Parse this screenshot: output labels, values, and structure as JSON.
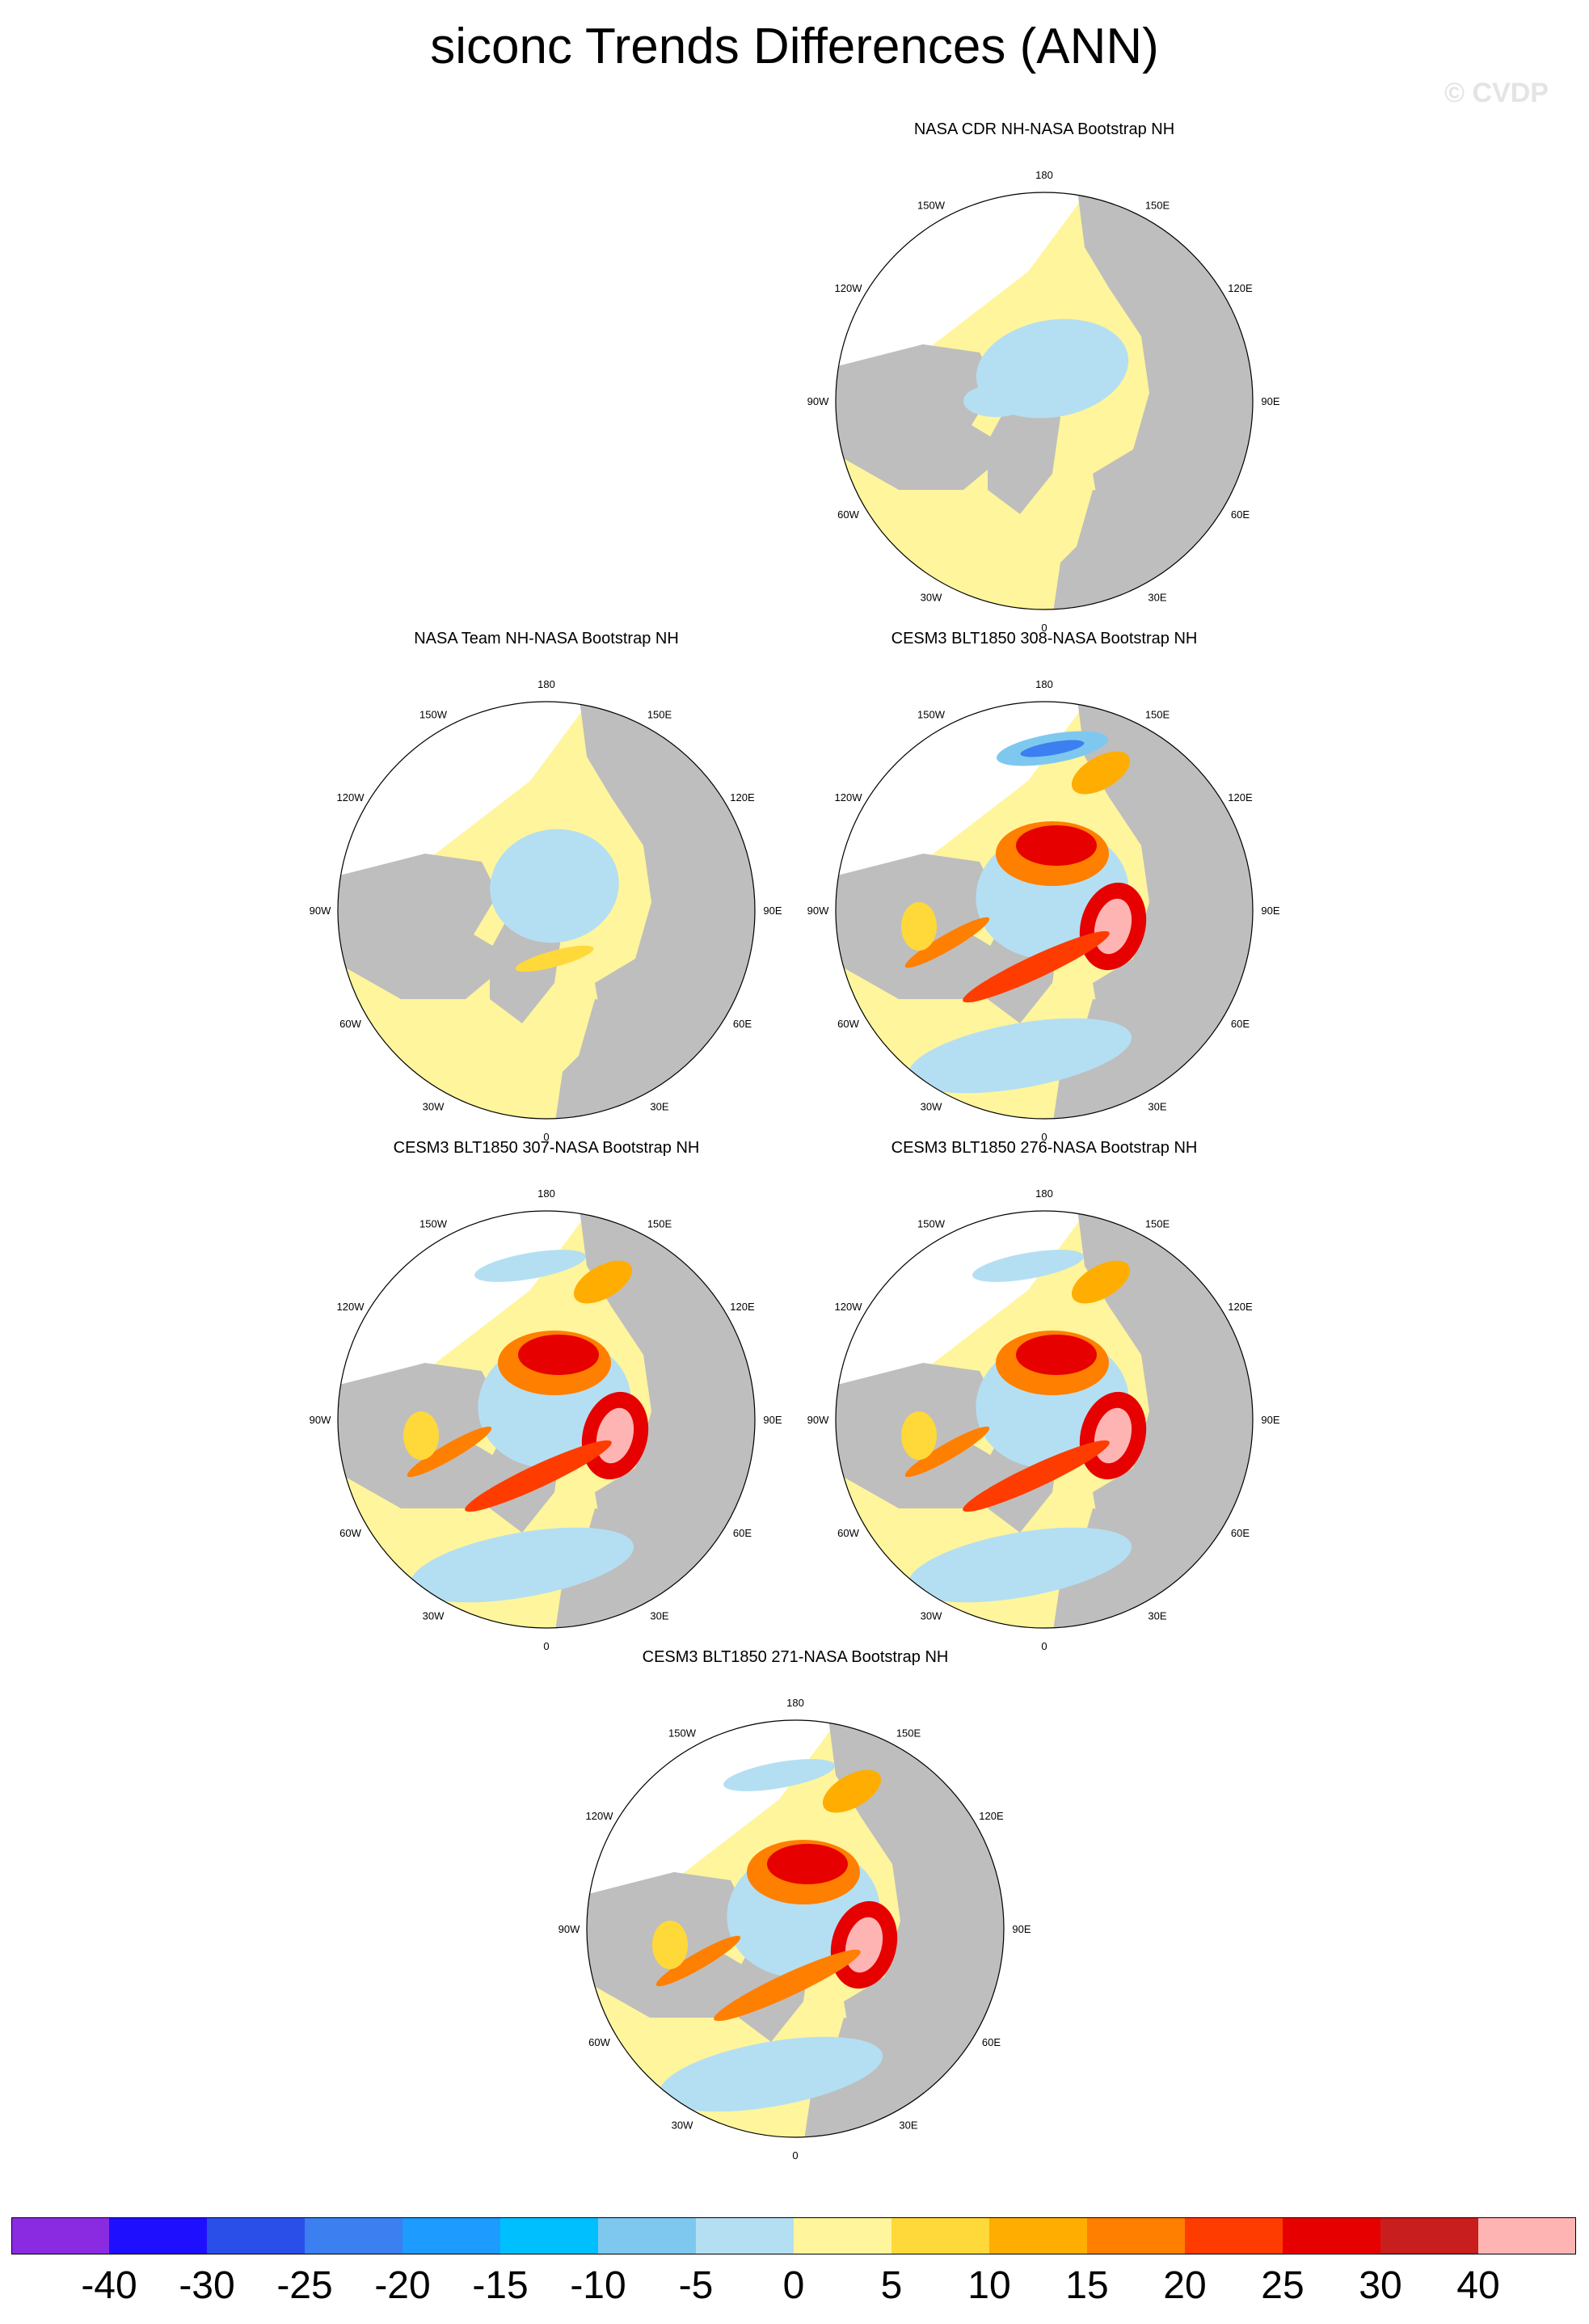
{
  "title": "siconc Trends Differences (ANN)",
  "watermark": "© CVDP",
  "panels": [
    {
      "id": "p1",
      "title": "NASA CDR NH-NASA Bootstrap NH",
      "style": "cdr"
    },
    {
      "id": "p2",
      "title": "NASA Team NH-NASA Bootstrap NH",
      "style": "team"
    },
    {
      "id": "p3",
      "title": "CESM3 BLT1850 308-NASA Bootstrap NH",
      "style": "model308"
    },
    {
      "id": "p4",
      "title": "CESM3 BLT1850 307-NASA Bootstrap NH",
      "style": "model307"
    },
    {
      "id": "p5",
      "title": "CESM3 BLT1850 276-NASA Bootstrap NH",
      "style": "model276"
    },
    {
      "id": "p6",
      "title": "CESM3 BLT1850 271-NASA Bootstrap NH",
      "style": "model271"
    }
  ],
  "longitude_labels": {
    "top": "180",
    "top_right": "150E",
    "right_upper": "120E",
    "right": "90E",
    "right_lower": "60E",
    "bottom_right": "30E",
    "bottom": "0",
    "bottom_left": "30W",
    "left_lower": "60W",
    "left": "90W",
    "left_upper": "120W",
    "top_left": "150W"
  },
  "colorbar": {
    "colors": [
      "#8a2be2",
      "#1e10ff",
      "#2a4fe8",
      "#3c7ff0",
      "#1e9bff",
      "#00bfff",
      "#7ec8f0",
      "#b4dff2",
      "#fff59c",
      "#ffd83a",
      "#ffad00",
      "#ff7f00",
      "#ff3c00",
      "#e60000",
      "#c81e1e",
      "#ffb4b4"
    ],
    "labels": [
      "-40",
      "-30",
      "-25",
      "-20",
      "-15",
      "-10",
      "-5",
      "0",
      "5",
      "10",
      "15",
      "20",
      "25",
      "30",
      "40"
    ]
  },
  "palette": {
    "land": "#bebebe",
    "ocean_missing": "#ffffff",
    "neg_small": "#b4dff2",
    "pos_small": "#fff59c",
    "pos_10": "#ffd83a",
    "pos_15": "#ffad00",
    "pos_20": "#ff7f00",
    "pos_25": "#ff3c00",
    "pos_30": "#e60000",
    "pos_40": "#c81e1e",
    "pos_max": "#ffb4b4",
    "neg_10": "#7ec8f0",
    "neg_20": "#3c7ff0"
  }
}
